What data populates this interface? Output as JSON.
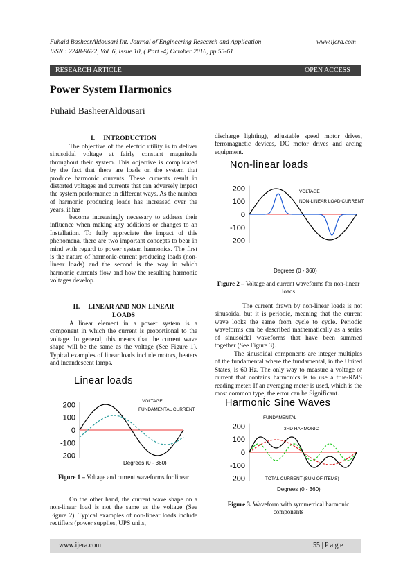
{
  "header": {
    "citation": "Fuhaid BasheerAldousari Int. Journal of Engineering Research and Application",
    "issn": "ISSN : 2248-9622, Vol. 6, Issue 10, ( Part -4) October 2016, pp.55-61",
    "website": "www.ijera.com"
  },
  "banner": {
    "left": "RESEARCH ARTICLE",
    "right": "OPEN ACCESS"
  },
  "title": "Power System Harmonics",
  "author": "Fuhaid BasheerAldousari",
  "sections": [
    {
      "number": "I.",
      "heading": "INTRODUCTION",
      "paragraphs": [
        "The objective of the electric utility is to deliver sinusoidal voltage at fairly constant magnitude throughout their system. This objective is complicated by the fact that there are loads on the system that produce harmonic currents. These currents result in distorted voltages and currents that can adversely impact the system performance in different ways. As the number of harmonic producing loads has increased over the years, it has",
        "become increasingly necessary to address their influence when making any additions or changes to an Installation. To fully appreciate the impact of this phenomena, there are two important concepts to bear in mind with regard to power system harmonics. The first is the nature of harmonic-current producing loads (non-linear loads) and the second is the way in which harmonic currents flow and how the resulting harmonic voltages develop."
      ]
    },
    {
      "number": "II.",
      "heading": "LINEAR AND NON-LINEAR LOADS",
      "paragraphs": [
        "A linear element in a power system is a component in which the current is proportional to the voltage. In general, this means that the current wave shape will be the same as the voltage (See Figure 1). Typical examples of linear loads include motors, heaters and incandescent lamps.",
        "On the other hand, the current wave shape on a non-linear load is not the same as the voltage (See Figure 2). Typical examples of non-linear loads include rectifiers (power supplies, UPS units,",
        "discharge lighting), adjustable speed motor drives, ferromagnetic devices, DC motor drives and arcing equipment.",
        "The current drawn by non-linear loads is not sinusoidal but it is periodic, meaning that the current wave looks the same from cycle to cycle. Periodic waveforms can be described mathematically as a series of sinusoidal waveforms that have been summed together (See Figure 3).",
        "The sinusoidal components are integer multiples of the fundamental where the fundamental, in the United States, is 60 Hz. The only way to measure a voltage or current that contains harmonics is to use a true-RMS reading meter. If an averaging meter is used, which is the most common type, the error can be Significant."
      ]
    }
  ],
  "figures": [
    {
      "title": "Linear loads",
      "yticks": [
        "200",
        "100",
        "0",
        "-100",
        "-200"
      ],
      "legend": [
        "VOLTAGE",
        "FUNDAMENTAL CURRENT"
      ],
      "xlabel": "Degrees (0 - 360)",
      "caption_label": "Figure 1 –",
      "caption": "Voltage and current waveforms for linear"
    },
    {
      "title": "Non-linear loads",
      "yticks": [
        "200",
        "100",
        "0",
        "-100",
        "-200"
      ],
      "legend": [
        "VOLTAGE",
        "NON-LINEAR LOAD CURRENT"
      ],
      "xlabel": "Degrees (0 - 360)",
      "caption_label": "Figure 2 –",
      "caption": "Voltage and current waveforms for non-linear loads"
    },
    {
      "title": "Harmonic Sine Waves",
      "yticks": [
        "200",
        "100",
        "0",
        "-100",
        "-200"
      ],
      "legend": [
        "FUNDAMENTAL",
        "3RD HARMONIC",
        "TOTAL CURRENT (SUM OF ITEMS)"
      ],
      "xlabel": "Degrees (0 - 360)",
      "caption_label": "Figure 3.",
      "caption": "Waveform with symmetrical harmonic components"
    }
  ],
  "footer": {
    "website": "www.ijera.com",
    "page": "55 | P a g e"
  }
}
